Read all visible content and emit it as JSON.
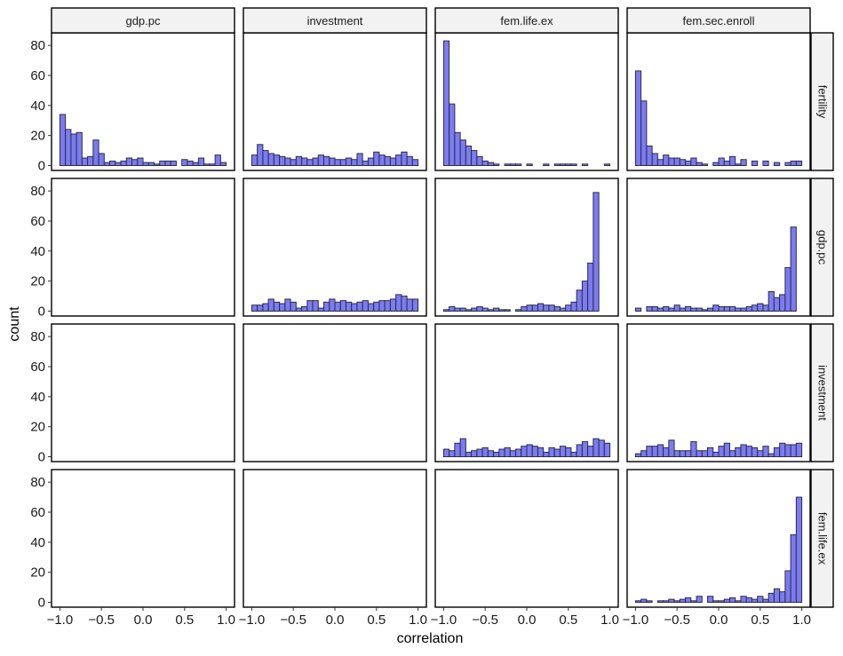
{
  "chart_data": {
    "type": "bar",
    "title": "",
    "xlabel": "correlation",
    "ylabel": "count",
    "x_range": [
      -1.0,
      1.0
    ],
    "ylim": [
      0,
      86
    ],
    "x_ticks": [
      -1.0,
      -0.5,
      0.0,
      0.5,
      1.0
    ],
    "x_tick_labels": [
      "−1.0",
      "−0.5",
      "0.0",
      "0.5",
      "1.0"
    ],
    "y_ticks": [
      0,
      20,
      40,
      60,
      80
    ],
    "y_tick_labels": [
      "0",
      "20",
      "40",
      "60",
      "80"
    ],
    "column_strips": [
      "gdp.pc",
      "investment",
      "fem.life.ex",
      "fem.sec.enroll"
    ],
    "row_strips": [
      "fertility",
      "gdp.pc",
      "investment",
      "fem.life.ex"
    ],
    "bin_start": -1.0,
    "bin_width": 0.0667,
    "bar_fill": "#7b7bf2",
    "bar_stroke": "#2d2d44",
    "strip_fill": "#f2f2f2",
    "panels": [
      {
        "row": 0,
        "col": 0,
        "values": [
          34,
          24,
          21,
          22,
          5,
          6,
          17,
          8,
          2,
          3,
          2,
          3,
          5,
          4,
          5,
          2,
          2,
          1,
          3,
          3,
          3,
          0,
          4,
          3,
          2,
          5,
          1,
          1,
          7,
          2
        ]
      },
      {
        "row": 0,
        "col": 1,
        "values": [
          7,
          14,
          10,
          8,
          7,
          6,
          5,
          4,
          6,
          5,
          4,
          5,
          7,
          6,
          5,
          4,
          4,
          5,
          4,
          8,
          3,
          5,
          9,
          7,
          6,
          5,
          7,
          9,
          6,
          4
        ]
      },
      {
        "row": 0,
        "col": 2,
        "values": [
          83,
          41,
          22,
          17,
          13,
          10,
          6,
          3,
          2,
          1,
          0,
          1,
          1,
          1,
          0,
          1,
          0,
          0,
          1,
          0,
          1,
          1,
          1,
          1,
          0,
          1,
          0,
          0,
          0,
          1
        ]
      },
      {
        "row": 0,
        "col": 3,
        "values": [
          63,
          43,
          13,
          8,
          4,
          7,
          5,
          5,
          4,
          3,
          5,
          2,
          1,
          0,
          2,
          5,
          3,
          6,
          1,
          4,
          0,
          3,
          0,
          3,
          0,
          2,
          0,
          2,
          3,
          3
        ]
      },
      {
        "row": 1,
        "col": 0,
        "values": []
      },
      {
        "row": 1,
        "col": 1,
        "values": [
          4,
          4,
          5,
          8,
          6,
          5,
          8,
          6,
          2,
          3,
          7,
          7,
          2,
          6,
          8,
          6,
          7,
          6,
          5,
          6,
          7,
          5,
          6,
          7,
          7,
          8,
          11,
          10,
          8,
          8
        ]
      },
      {
        "row": 1,
        "col": 2,
        "values": [
          1,
          3,
          2,
          2,
          1,
          2,
          3,
          2,
          1,
          2,
          1,
          1,
          0,
          1,
          3,
          4,
          4,
          5,
          4,
          4,
          3,
          2,
          4,
          6,
          14,
          20,
          32,
          79,
          0,
          0
        ]
      },
      {
        "row": 1,
        "col": 3,
        "values": [
          2,
          0,
          3,
          3,
          2,
          3,
          2,
          4,
          2,
          3,
          2,
          2,
          1,
          2,
          4,
          3,
          3,
          3,
          2,
          2,
          3,
          4,
          5,
          4,
          13,
          9,
          11,
          29,
          56,
          0
        ]
      },
      {
        "row": 2,
        "col": 0,
        "values": []
      },
      {
        "row": 2,
        "col": 1,
        "values": []
      },
      {
        "row": 2,
        "col": 2,
        "values": [
          5,
          4,
          9,
          12,
          3,
          4,
          5,
          6,
          4,
          3,
          5,
          6,
          4,
          5,
          7,
          8,
          7,
          6,
          3,
          6,
          5,
          7,
          6,
          3,
          8,
          10,
          7,
          12,
          11,
          9
        ]
      },
      {
        "row": 2,
        "col": 3,
        "values": [
          2,
          4,
          7,
          7,
          8,
          6,
          11,
          4,
          4,
          4,
          10,
          4,
          4,
          6,
          3,
          7,
          9,
          4,
          6,
          8,
          7,
          6,
          4,
          7,
          2,
          6,
          9,
          8,
          8,
          9
        ]
      },
      {
        "row": 3,
        "col": 0,
        "values": []
      },
      {
        "row": 3,
        "col": 1,
        "values": []
      },
      {
        "row": 3,
        "col": 2,
        "values": []
      },
      {
        "row": 3,
        "col": 3,
        "values": [
          1,
          2,
          1,
          0,
          1,
          1,
          2,
          1,
          2,
          3,
          1,
          4,
          0,
          4,
          1,
          1,
          2,
          3,
          1,
          4,
          3,
          2,
          4,
          2,
          6,
          9,
          7,
          21,
          45,
          70
        ]
      }
    ]
  }
}
